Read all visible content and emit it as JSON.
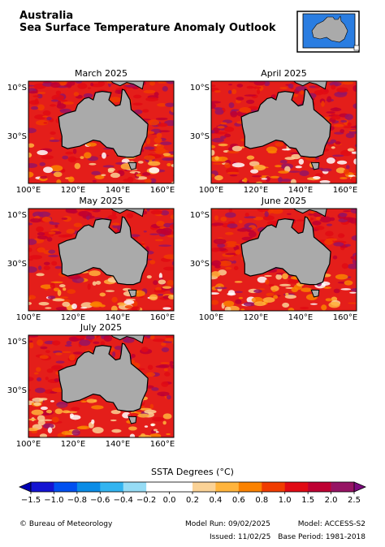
{
  "header": {
    "title": "Australia",
    "subtitle": "Sea Surface Temperature Anomaly Outlook"
  },
  "maps": [
    {
      "title": "March 2025"
    },
    {
      "title": "April 2025"
    },
    {
      "title": "May 2025"
    },
    {
      "title": "June 2025"
    },
    {
      "title": "July 2025"
    }
  ],
  "axes": {
    "yticks": [
      "10°S",
      "30°S"
    ],
    "xticks": [
      "100°E",
      "120°E",
      "140°E",
      "160°E"
    ]
  },
  "colorbar": {
    "label": "SSTA Degrees (°C)",
    "ticks": [
      "−1.5",
      "−1.0",
      "−0.8",
      "−0.6",
      "−0.4",
      "−0.2",
      "0.0",
      "0.2",
      "0.4",
      "0.6",
      "0.8",
      "1.0",
      "1.5",
      "2.0",
      "2.5"
    ],
    "colors": [
      "#1414d2",
      "#0050f0",
      "#0a8ce6",
      "#32b4f0",
      "#96dcf5",
      "#ffffff",
      "#ffffff",
      "#fad296",
      "#ffb43c",
      "#fa8200",
      "#f03c00",
      "#e10a14",
      "#be0032",
      "#961464"
    ],
    "under_color": "#0000b4",
    "over_color": "#7d0a7d"
  },
  "footer": {
    "credit": "© Bureau of Meteorology",
    "model_run": "Model Run: 09/02/2025",
    "model": "Model: ACCESS-S2",
    "issued": "Issued: 11/02/25",
    "base_period": "Base Period: 1981-2018"
  }
}
